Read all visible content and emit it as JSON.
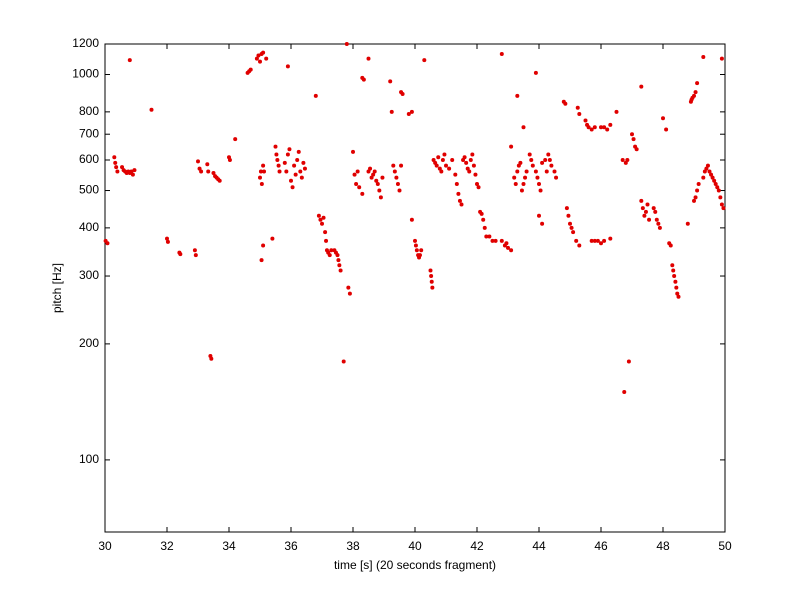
{
  "chart_data": {
    "type": "scatter",
    "xlabel": "time [s] (20 seconds fragment)",
    "ylabel": "pitch [Hz]",
    "xlim": [
      30,
      50
    ],
    "xticks": [
      30,
      32,
      34,
      36,
      38,
      40,
      42,
      44,
      46,
      48,
      50
    ],
    "ylim": [
      65,
      1200
    ],
    "yticks": [
      100,
      200,
      300,
      400,
      500,
      600,
      700,
      800,
      1000,
      1200
    ],
    "yscale": "log",
    "grid": false,
    "x": [
      30.02,
      30.08,
      30.3,
      30.33,
      30.36,
      30.4,
      30.55,
      30.6,
      30.65,
      30.7,
      30.75,
      30.8,
      30.85,
      30.9,
      30.95,
      30.8,
      31.5,
      32.0,
      32.03,
      32.4,
      32.43,
      32.9,
      32.93,
      33.0,
      33.05,
      33.1,
      33.3,
      33.33,
      33.4,
      33.43,
      33.5,
      33.55,
      33.6,
      33.65,
      33.7,
      34.0,
      34.03,
      34.2,
      34.6,
      34.65,
      34.7,
      34.9,
      34.95,
      35.0,
      35.05,
      35.1,
      35.2,
      35.0,
      35.03,
      35.06,
      35.1,
      35.13,
      35.1,
      35.05,
      35.4,
      35.5,
      35.53,
      35.56,
      35.6,
      35.63,
      35.9,
      35.8,
      35.85,
      35.9,
      35.95,
      36.0,
      36.05,
      36.1,
      36.15,
      36.2,
      36.25,
      36.3,
      36.35,
      36.4,
      36.45,
      36.8,
      36.9,
      36.95,
      37.0,
      37.05,
      37.1,
      37.13,
      37.16,
      37.2,
      37.25,
      37.3,
      37.4,
      37.45,
      37.5,
      37.53,
      37.56,
      37.6,
      37.7,
      37.8,
      37.85,
      37.9,
      38.0,
      38.05,
      38.1,
      38.15,
      38.2,
      38.3,
      38.3,
      38.35,
      38.5,
      38.5,
      38.55,
      38.6,
      38.65,
      38.7,
      38.75,
      38.8,
      38.85,
      38.9,
      38.95,
      39.2,
      39.25,
      39.3,
      39.35,
      39.4,
      39.45,
      39.5,
      39.55,
      39.55,
      39.6,
      39.8,
      39.9,
      39.9,
      40.0,
      40.03,
      40.06,
      40.1,
      40.13,
      40.16,
      40.2,
      40.3,
      40.5,
      40.52,
      40.54,
      40.56,
      40.6,
      40.65,
      40.7,
      40.75,
      40.8,
      40.85,
      40.9,
      40.95,
      41.0,
      41.1,
      41.2,
      41.3,
      41.35,
      41.4,
      41.45,
      41.5,
      41.55,
      41.6,
      41.65,
      41.7,
      41.75,
      41.8,
      41.85,
      41.9,
      41.95,
      42.0,
      42.05,
      42.1,
      42.15,
      42.2,
      42.25,
      42.3,
      42.4,
      42.5,
      42.6,
      42.8,
      42.8,
      42.9,
      42.95,
      43.0,
      43.1,
      43.1,
      43.3,
      43.2,
      43.25,
      43.3,
      43.35,
      43.4,
      43.45,
      43.5,
      43.55,
      43.6,
      43.5,
      43.7,
      43.75,
      43.8,
      43.9,
      43.9,
      43.95,
      44.0,
      44.05,
      44.1,
      44.2,
      44.25,
      44.0,
      44.1,
      44.3,
      44.35,
      44.4,
      44.5,
      44.55,
      44.8,
      44.85,
      44.9,
      44.95,
      45.0,
      45.05,
      45.1,
      45.2,
      45.3,
      45.25,
      45.3,
      45.5,
      45.55,
      45.6,
      45.7,
      45.8,
      45.7,
      45.8,
      45.9,
      46.0,
      46.1,
      46.3,
      46.0,
      46.1,
      46.2,
      46.3,
      46.5,
      46.75,
      46.7,
      46.8,
      46.85,
      46.9,
      47.0,
      47.05,
      47.1,
      47.15,
      47.3,
      47.3,
      47.35,
      47.4,
      47.45,
      47.5,
      47.55,
      47.7,
      47.75,
      47.8,
      47.85,
      47.9,
      48.0,
      48.1,
      48.2,
      48.25,
      48.3,
      48.33,
      48.36,
      48.4,
      48.43,
      48.46,
      48.5,
      48.8,
      48.9,
      48.95,
      49.0,
      49.05,
      49.1,
      48.92,
      49.0,
      49.05,
      49.1,
      49.15,
      49.3,
      49.3,
      49.35,
      49.4,
      49.45,
      49.5,
      49.55,
      49.6,
      49.65,
      49.7,
      49.75,
      49.8,
      49.85,
      49.9,
      49.95,
      49.9
    ],
    "series": [
      {
        "color": "#e00000",
        "values": [
          370,
          365,
          610,
          590,
          575,
          560,
          575,
          565,
          560,
          555,
          560,
          555,
          560,
          550,
          565,
          1090,
          810,
          375,
          368,
          345,
          342,
          350,
          340,
          595,
          570,
          560,
          585,
          560,
          186,
          183,
          555,
          545,
          540,
          535,
          530,
          610,
          600,
          680,
          1010,
          1020,
          1030,
          1100,
          1120,
          1080,
          1130,
          1140,
          1100,
          540,
          560,
          520,
          580,
          560,
          360,
          330,
          375,
          650,
          620,
          600,
          580,
          560,
          1050,
          590,
          560,
          620,
          640,
          530,
          510,
          580,
          550,
          600,
          630,
          560,
          540,
          590,
          570,
          880,
          430,
          420,
          410,
          425,
          390,
          370,
          350,
          345,
          340,
          350,
          350,
          345,
          340,
          330,
          320,
          310,
          180,
          1200,
          280,
          270,
          630,
          550,
          520,
          560,
          510,
          490,
          980,
          970,
          1100,
          560,
          570,
          540,
          550,
          560,
          530,
          520,
          500,
          480,
          540,
          960,
          800,
          580,
          560,
          540,
          520,
          500,
          580,
          900,
          890,
          790,
          800,
          420,
          370,
          360,
          350,
          340,
          335,
          340,
          350,
          1090,
          310,
          300,
          290,
          280,
          600,
          590,
          580,
          610,
          570,
          560,
          600,
          620,
          580,
          570,
          600,
          550,
          520,
          490,
          470,
          460,
          600,
          610,
          590,
          570,
          560,
          600,
          620,
          580,
          550,
          520,
          510,
          440,
          435,
          420,
          400,
          380,
          380,
          370,
          370,
          1130,
          370,
          360,
          365,
          355,
          350,
          650,
          880,
          540,
          520,
          560,
          580,
          590,
          500,
          520,
          540,
          560,
          730,
          620,
          600,
          580,
          1010,
          560,
          540,
          520,
          500,
          590,
          600,
          560,
          430,
          410,
          620,
          600,
          580,
          560,
          540,
          850,
          840,
          450,
          430,
          410,
          400,
          390,
          370,
          360,
          820,
          790,
          760,
          740,
          730,
          720,
          730,
          370,
          370,
          370,
          365,
          370,
          375,
          730,
          730,
          720,
          740,
          800,
          150,
          600,
          590,
          600,
          180,
          700,
          680,
          650,
          640,
          930,
          470,
          450,
          430,
          440,
          460,
          420,
          450,
          440,
          420,
          410,
          400,
          770,
          720,
          365,
          360,
          320,
          310,
          300,
          290,
          280,
          270,
          265,
          410,
          850,
          870,
          880,
          900,
          950,
          860,
          470,
          480,
          500,
          520,
          1110,
          540,
          560,
          570,
          580,
          560,
          550,
          540,
          530,
          520,
          510,
          500,
          480,
          460,
          450,
          1100
        ]
      }
    ]
  }
}
